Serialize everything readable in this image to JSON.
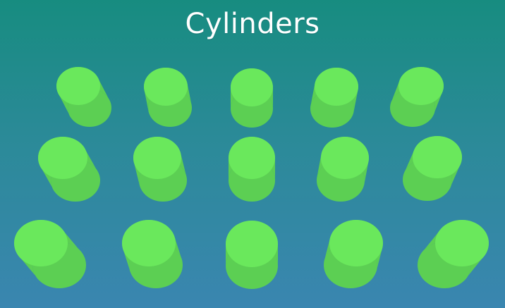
{
  "title": "Cylinders",
  "colors": {
    "background_top": "#178c80",
    "background_bottom": "#3a86b0",
    "cylinder_top": "#6ae85c",
    "cylinder_side": "#5ccf53",
    "cylinder_side_shade": "#55c24c"
  }
}
